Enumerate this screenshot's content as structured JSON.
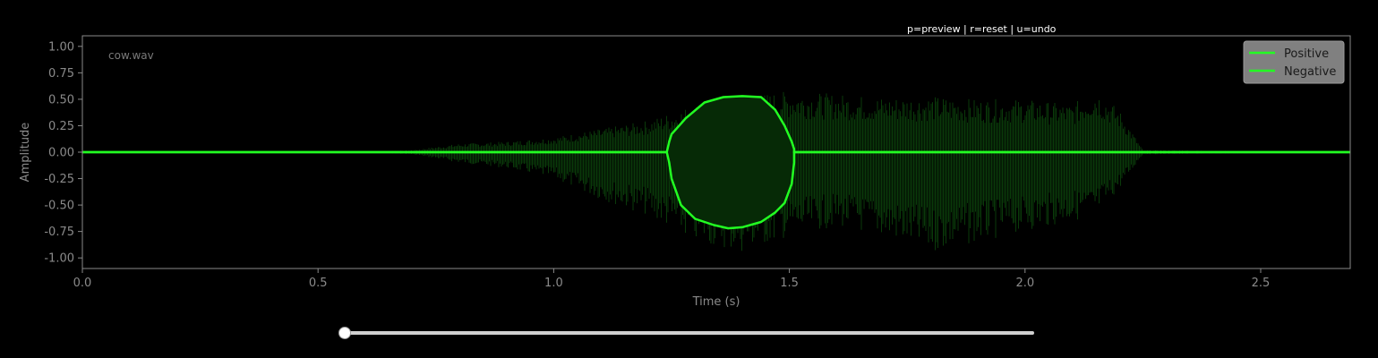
{
  "toolbar": {
    "shortcuts_hint": "p=preview | r=reset | u=undo"
  },
  "chart_data": {
    "type": "line",
    "annotation": "cow.wav",
    "xlabel": "Time (s)",
    "ylabel": "Amplitude",
    "xlim": [
      0,
      2.69
    ],
    "ylim": [
      -1.1,
      1.1
    ],
    "x_ticks": [
      "0.0",
      "0.5",
      "1.0",
      "1.5",
      "2.0",
      "2.5"
    ],
    "y_ticks": [
      "1.00",
      "0.75",
      "0.50",
      "0.25",
      "0.00",
      "-0.25",
      "-0.50",
      "-0.75",
      "-1.00"
    ],
    "grid": false,
    "legend_position": "top-right",
    "colors": {
      "background": "#000000",
      "waveform": "#0a3a0a",
      "envelope_fill": "#062a06",
      "envelope_line": "#22ff22",
      "axis_text": "#8a8a8a",
      "legend_bg": "#808080"
    },
    "series": [
      {
        "name": "Positive",
        "color": "#22ff22",
        "x": [
          0.0,
          1.24,
          1.245,
          1.25,
          1.28,
          1.32,
          1.36,
          1.4,
          1.44,
          1.47,
          1.49,
          1.505,
          1.51,
          1.51,
          2.69
        ],
        "y": [
          0.0,
          0.0,
          0.1,
          0.17,
          0.32,
          0.47,
          0.52,
          0.53,
          0.52,
          0.4,
          0.25,
          0.1,
          0.03,
          0.0,
          0.0
        ]
      },
      {
        "name": "Negative",
        "color": "#22ff22",
        "x": [
          0.0,
          1.24,
          1.245,
          1.25,
          1.27,
          1.3,
          1.34,
          1.37,
          1.4,
          1.44,
          1.47,
          1.49,
          1.505,
          1.51,
          1.51,
          2.69
        ],
        "y": [
          0.0,
          0.0,
          -0.1,
          -0.25,
          -0.5,
          -0.63,
          -0.69,
          -0.72,
          -0.71,
          -0.66,
          -0.57,
          -0.48,
          -0.3,
          -0.1,
          0.0,
          0.0
        ]
      }
    ],
    "waveform_envelope": {
      "x": [
        0.0,
        0.6,
        0.7,
        0.8,
        0.9,
        1.0,
        1.1,
        1.2,
        1.3,
        1.4,
        1.5,
        1.6,
        1.7,
        1.8,
        1.9,
        2.0,
        2.1,
        2.15,
        2.2,
        2.25,
        2.69
      ],
      "y_max": [
        0.0,
        0.0,
        0.02,
        0.08,
        0.1,
        0.14,
        0.22,
        0.3,
        0.45,
        0.53,
        0.58,
        0.55,
        0.52,
        0.53,
        0.5,
        0.5,
        0.45,
        0.6,
        0.4,
        0.02,
        0.0
      ],
      "y_min": [
        0.0,
        0.0,
        -0.02,
        -0.1,
        -0.15,
        -0.25,
        -0.45,
        -0.6,
        -0.85,
        -0.95,
        -0.8,
        -0.7,
        -0.8,
        -0.95,
        -0.85,
        -0.75,
        -0.65,
        -0.6,
        -0.35,
        -0.02,
        0.0
      ]
    }
  },
  "slider": {
    "value_fraction": 0.0
  }
}
